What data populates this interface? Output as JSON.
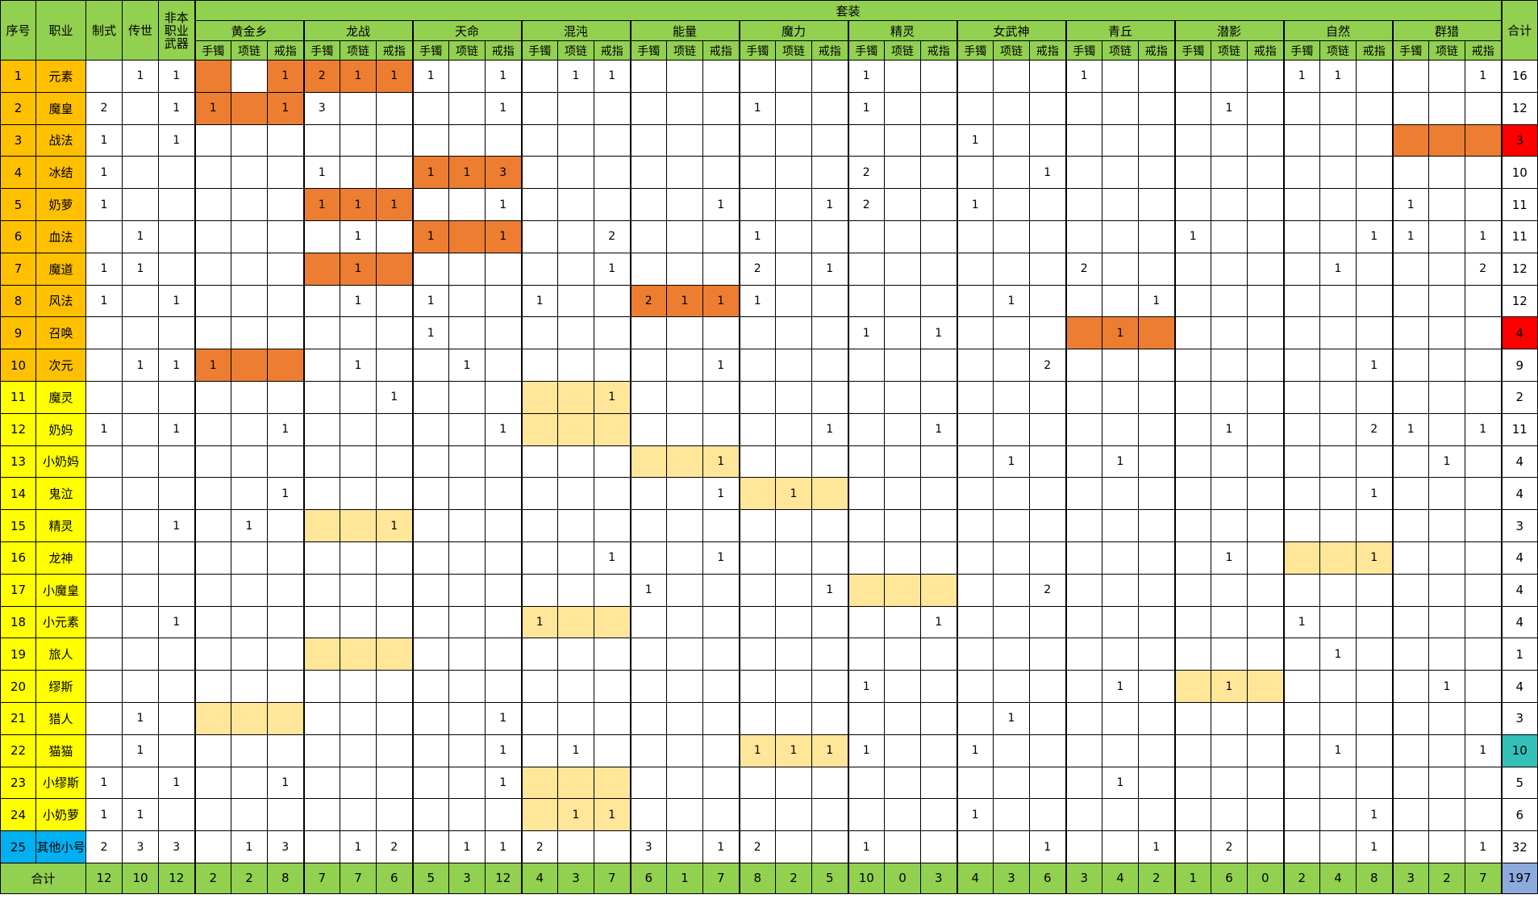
{
  "headers": {
    "idx": "序号",
    "cls": "职业",
    "zhishi": "制式",
    "chuanshi": "传世",
    "nonweapon": "非本职业武器",
    "set_group": "套装",
    "total": "合计",
    "sets": [
      "黄金乡",
      "龙战",
      "天命",
      "混沌",
      "能量",
      "魔力",
      "精灵",
      "女武神",
      "青丘",
      "潜影",
      "自然",
      "群猎"
    ],
    "slots": [
      "手镯",
      "项链",
      "戒指"
    ]
  },
  "rows": [
    {
      "idx": "1",
      "cls": "元素",
      "color": "orange",
      "zhishi": "",
      "chuanshi": "1",
      "nonweapon": "1",
      "cells": [
        "",
        "",
        "1",
        "2",
        "1",
        "1",
        "1",
        "",
        "1",
        "",
        "1",
        "1",
        "",
        "",
        "",
        "",
        "",
        "",
        "1",
        "",
        "",
        "",
        "",
        "",
        "1",
        "",
        "",
        "",
        "",
        "",
        "1",
        "1",
        "",
        "",
        "",
        "1"
      ],
      "total": "16"
    },
    {
      "idx": "2",
      "cls": "魔皇",
      "color": "orange",
      "zhishi": "2",
      "chuanshi": "",
      "nonweapon": "1",
      "cells": [
        "1",
        "",
        "1",
        "3",
        "",
        "",
        "",
        "",
        "1",
        "",
        "",
        "",
        "",
        "",
        "",
        "1",
        "",
        "",
        "1",
        "",
        "",
        "",
        "",
        "",
        "",
        "",
        "",
        "",
        "1",
        "",
        "",
        "",
        "",
        "",
        "",
        ""
      ],
      "total": "12"
    },
    {
      "idx": "3",
      "cls": "战法",
      "color": "orange",
      "zhishi": "1",
      "chuanshi": "",
      "nonweapon": "1",
      "cells": [
        "",
        "",
        "",
        "",
        "",
        "",
        "",
        "",
        "",
        "",
        "",
        "",
        "",
        "",
        "",
        "",
        "",
        "",
        "",
        "",
        "",
        "1",
        "",
        "",
        "",
        "",
        "",
        "",
        "",
        "",
        "",
        "",
        "",
        "",
        "",
        ""
      ],
      "total": "3",
      "total_color": "red"
    },
    {
      "idx": "4",
      "cls": "冰结",
      "color": "orange",
      "zhishi": "1",
      "chuanshi": "",
      "nonweapon": "",
      "cells": [
        "",
        "",
        "",
        "1",
        "",
        "",
        "1",
        "1",
        "3",
        "",
        "",
        "",
        "",
        "",
        "",
        "",
        "",
        "",
        "2",
        "",
        "",
        "",
        "",
        "1",
        "",
        "",
        "",
        "",
        "",
        "",
        "",
        "",
        "",
        "",
        "",
        ""
      ],
      "total": "10"
    },
    {
      "idx": "5",
      "cls": "奶萝",
      "color": "orange",
      "zhishi": "1",
      "chuanshi": "",
      "nonweapon": "",
      "cells": [
        "",
        "",
        "",
        "1",
        "1",
        "1",
        "",
        "",
        "1",
        "",
        "",
        "",
        "",
        "",
        "1",
        "",
        "",
        "1",
        "2",
        "",
        "",
        "1",
        "",
        "",
        "",
        "",
        "",
        "",
        "",
        "",
        "",
        "",
        "",
        "1",
        "",
        ""
      ],
      "total": "11"
    },
    {
      "idx": "6",
      "cls": "血法",
      "color": "orange",
      "zhishi": "",
      "chuanshi": "1",
      "nonweapon": "",
      "cells": [
        "",
        "",
        "",
        "",
        "1",
        "",
        "1",
        "",
        "1",
        "",
        "",
        "2",
        "",
        "",
        "",
        "1",
        "",
        "",
        "",
        "",
        "",
        "",
        "",
        "",
        "",
        "",
        "",
        "1",
        "",
        "",
        "",
        "",
        "1",
        "1",
        "",
        "1"
      ],
      "total": "11"
    },
    {
      "idx": "7",
      "cls": "魔道",
      "color": "orange",
      "zhishi": "1",
      "chuanshi": "1",
      "nonweapon": "",
      "cells": [
        "",
        "",
        "",
        "",
        "1",
        "",
        "",
        "",
        "",
        "",
        "",
        "1",
        "",
        "",
        "",
        "2",
        "",
        "1",
        "",
        "",
        "",
        "",
        "",
        "",
        "2",
        "",
        "",
        "",
        "",
        "",
        "",
        "1",
        "",
        "",
        "",
        "2"
      ],
      "total": "12"
    },
    {
      "idx": "8",
      "cls": "风法",
      "color": "orange",
      "zhishi": "1",
      "chuanshi": "",
      "nonweapon": "1",
      "cells": [
        "",
        "",
        "",
        "",
        "1",
        "",
        "1",
        "",
        "",
        "1",
        "",
        "",
        "2",
        "1",
        "1",
        "1",
        "",
        "",
        "",
        "",
        "",
        "",
        "1",
        "",
        "",
        "",
        "1",
        "",
        "",
        "",
        "",
        "",
        "",
        "",
        "",
        ""
      ],
      "total": "12"
    },
    {
      "idx": "9",
      "cls": "召唤",
      "color": "orange",
      "zhishi": "",
      "chuanshi": "",
      "nonweapon": "",
      "cells": [
        "",
        "",
        "",
        "",
        "",
        "",
        "1",
        "",
        "",
        "",
        "",
        "",
        "",
        "",
        "",
        "",
        "",
        "",
        "1",
        "",
        "1",
        "",
        "",
        "",
        "",
        "1",
        "",
        "",
        "",
        "",
        "",
        "",
        "",
        "",
        "",
        ""
      ],
      "total": "4",
      "total_color": "red"
    },
    {
      "idx": "10",
      "cls": "次元",
      "color": "orange",
      "zhishi": "",
      "chuanshi": "1",
      "nonweapon": "1",
      "cells": [
        "1",
        "",
        "",
        "",
        "1",
        "",
        "",
        "1",
        "",
        "",
        "",
        "",
        "",
        "",
        "1",
        "",
        "",
        "",
        "",
        "",
        "",
        "",
        "",
        "2",
        "",
        "",
        "",
        "",
        "",
        "",
        "",
        "",
        "1",
        "",
        "",
        ""
      ],
      "total": "9"
    },
    {
      "idx": "11",
      "cls": "魔灵",
      "color": "yellow",
      "zhishi": "",
      "chuanshi": "",
      "nonweapon": "",
      "cells": [
        "",
        "",
        "",
        "",
        "",
        "1",
        "",
        "",
        "",
        "",
        "",
        "1",
        "",
        "",
        "",
        "",
        "",
        "",
        "",
        "",
        "",
        "",
        "",
        "",
        "",
        "",
        "",
        "",
        "",
        "",
        "",
        "",
        "",
        "",
        "",
        ""
      ],
      "total": "2"
    },
    {
      "idx": "12",
      "cls": "奶妈",
      "color": "yellow",
      "zhishi": "1",
      "chuanshi": "",
      "nonweapon": "1",
      "cells": [
        "",
        "",
        "1",
        "",
        "",
        "",
        "",
        "",
        "1",
        "",
        "",
        "",
        "",
        "",
        "",
        "",
        "",
        "1",
        "",
        "",
        "1",
        "",
        "",
        "",
        "",
        "",
        "",
        "",
        "1",
        "",
        "",
        "",
        "2",
        "1",
        "",
        "1"
      ],
      "total": "11"
    },
    {
      "idx": "13",
      "cls": "小奶妈",
      "color": "yellow",
      "zhishi": "",
      "chuanshi": "",
      "nonweapon": "",
      "cells": [
        "",
        "",
        "",
        "",
        "",
        "",
        "",
        "",
        "",
        "",
        "",
        "",
        "",
        "",
        "1",
        "",
        "",
        "",
        "",
        "",
        "",
        "",
        "1",
        "",
        "",
        "1",
        "",
        "",
        "",
        "",
        "",
        "",
        "",
        "",
        "1",
        ""
      ],
      "total": "4"
    },
    {
      "idx": "14",
      "cls": "鬼泣",
      "color": "yellow",
      "zhishi": "",
      "chuanshi": "",
      "nonweapon": "",
      "cells": [
        "",
        "",
        "1",
        "",
        "",
        "",
        "",
        "",
        "",
        "",
        "",
        "",
        "",
        "",
        "1",
        "",
        "1",
        "",
        "",
        "",
        "",
        "",
        "",
        "",
        "",
        "",
        "",
        "",
        "",
        "",
        "",
        "",
        "1",
        "",
        "",
        ""
      ],
      "total": "4"
    },
    {
      "idx": "15",
      "cls": "精灵",
      "color": "yellow",
      "zhishi": "",
      "chuanshi": "",
      "nonweapon": "1",
      "cells": [
        "",
        "1",
        "",
        "",
        "",
        "1",
        "",
        "",
        "",
        "",
        "",
        "",
        "",
        "",
        "",
        "",
        "",
        "",
        "",
        "",
        "",
        "",
        "",
        "",
        "",
        "",
        "",
        "",
        "",
        "",
        "",
        "",
        "",
        "",
        "",
        ""
      ],
      "total": "3"
    },
    {
      "idx": "16",
      "cls": "龙神",
      "color": "yellow",
      "zhishi": "",
      "chuanshi": "",
      "nonweapon": "",
      "cells": [
        "",
        "",
        "",
        "",
        "",
        "",
        "",
        "",
        "",
        "",
        "",
        "1",
        "",
        "",
        "1",
        "",
        "",
        "",
        "",
        "",
        "",
        "",
        "",
        "",
        "",
        "",
        "",
        "",
        "1",
        "",
        "",
        "",
        "1",
        "",
        "",
        ""
      ],
      "total": "4"
    },
    {
      "idx": "17",
      "cls": "小魔皇",
      "color": "yellow",
      "zhishi": "",
      "chuanshi": "",
      "nonweapon": "",
      "cells": [
        "",
        "",
        "",
        "",
        "",
        "",
        "",
        "",
        "",
        "",
        "",
        "",
        "1",
        "",
        "",
        "",
        "",
        "1",
        "",
        "",
        "",
        "",
        "",
        "2",
        "",
        "",
        "",
        "",
        "",
        "",
        "",
        "",
        "",
        "",
        "",
        ""
      ],
      "total": "4"
    },
    {
      "idx": "18",
      "cls": "小元素",
      "color": "yellow",
      "zhishi": "",
      "chuanshi": "",
      "nonweapon": "1",
      "cells": [
        "",
        "",
        "",
        "",
        "",
        "",
        "",
        "",
        "",
        "1",
        "",
        "",
        "",
        "",
        "",
        "",
        "",
        "",
        "",
        "",
        "1",
        "",
        "",
        "",
        "",
        "",
        "",
        "",
        "",
        "",
        "1",
        "",
        "",
        "",
        "",
        ""
      ],
      "total": "4"
    },
    {
      "idx": "19",
      "cls": "旅人",
      "color": "yellow",
      "zhishi": "",
      "chuanshi": "",
      "nonweapon": "",
      "cells": [
        "",
        "",
        "",
        "",
        "",
        "",
        "",
        "",
        "",
        "",
        "",
        "",
        "",
        "",
        "",
        "",
        "",
        "",
        "",
        "",
        "",
        "",
        "",
        "",
        "",
        "",
        "",
        "",
        "",
        "",
        "",
        "1",
        "",
        "",
        "",
        ""
      ],
      "total": "1"
    },
    {
      "idx": "20",
      "cls": "缪斯",
      "color": "yellow",
      "zhishi": "",
      "chuanshi": "",
      "nonweapon": "",
      "cells": [
        "",
        "",
        "",
        "",
        "",
        "",
        "",
        "",
        "",
        "",
        "",
        "",
        "",
        "",
        "",
        "",
        "",
        "",
        "1",
        "",
        "",
        "",
        "",
        "",
        "",
        "1",
        "",
        "",
        "1",
        "",
        "",
        "",
        "",
        "",
        "1",
        ""
      ],
      "total": "4"
    },
    {
      "idx": "21",
      "cls": "猎人",
      "color": "yellow",
      "zhishi": "",
      "chuanshi": "1",
      "nonweapon": "",
      "cells": [
        "",
        "",
        "",
        "",
        "",
        "",
        "",
        "",
        "1",
        "",
        "",
        "",
        "",
        "",
        "",
        "",
        "",
        "",
        "",
        "",
        "",
        "",
        "1",
        "",
        "",
        "",
        "",
        "",
        "",
        "",
        "",
        "",
        "",
        "",
        "",
        ""
      ],
      "total": "3"
    },
    {
      "idx": "22",
      "cls": "猫猫",
      "color": "yellow",
      "zhishi": "",
      "chuanshi": "1",
      "nonweapon": "",
      "cells": [
        "",
        "",
        "",
        "",
        "",
        "",
        "",
        "",
        "1",
        "",
        "1",
        "",
        "",
        "",
        "",
        "1",
        "1",
        "1",
        "1",
        "",
        "",
        "1",
        "",
        "",
        "",
        "",
        "",
        "",
        "",
        "",
        "",
        "1",
        "",
        "",
        "",
        "1"
      ],
      "total": "10",
      "total_color": "teal"
    },
    {
      "idx": "23",
      "cls": "小缪斯",
      "color": "yellow",
      "zhishi": "1",
      "chuanshi": "",
      "nonweapon": "1",
      "cells": [
        "",
        "",
        "1",
        "",
        "",
        "",
        "",
        "",
        "1",
        "",
        "",
        "",
        "",
        "",
        "",
        "",
        "",
        "",
        "",
        "",
        "",
        "",
        "",
        "",
        "",
        "1",
        "",
        "",
        "",
        "",
        "",
        "",
        "",
        "",
        "",
        ""
      ],
      "total": "5"
    },
    {
      "idx": "24",
      "cls": "小奶萝",
      "color": "yellow",
      "zhishi": "1",
      "chuanshi": "1",
      "nonweapon": "",
      "cells": [
        "",
        "",
        "",
        "",
        "",
        "",
        "",
        "",
        "",
        "",
        "1",
        "1",
        "",
        "",
        "",
        "",
        "",
        "",
        "",
        "",
        "",
        "1",
        "",
        "",
        "",
        "",
        "",
        "",
        "",
        "",
        "",
        "",
        "1",
        "",
        "",
        ""
      ],
      "total": "6"
    },
    {
      "idx": "25",
      "cls": "其他小号",
      "color": "blue",
      "zhishi": "2",
      "chuanshi": "3",
      "nonweapon": "3",
      "cells": [
        "",
        "1",
        "3",
        "",
        "1",
        "2",
        "",
        "1",
        "1",
        "2",
        "",
        "",
        "3",
        "",
        "1",
        "2",
        "",
        "",
        "1",
        "",
        "",
        "",
        "",
        "1",
        "",
        "",
        "1",
        "",
        "2",
        "",
        "",
        "",
        "1",
        "",
        "",
        "1"
      ],
      "total": "32"
    }
  ],
  "footer": {
    "label": "合计",
    "zhishi": "12",
    "chuanshi": "10",
    "nonweapon": "12",
    "cells": [
      "2",
      "2",
      "8",
      "7",
      "7",
      "6",
      "5",
      "3",
      "12",
      "4",
      "3",
      "7",
      "6",
      "1",
      "7",
      "8",
      "2",
      "5",
      "10",
      "0",
      "3",
      "4",
      "3",
      "6",
      "3",
      "4",
      "2",
      "1",
      "6",
      "0",
      "2",
      "4",
      "8",
      "3",
      "2",
      "7"
    ],
    "total": "197"
  },
  "highlights": {
    "orange": [
      [
        0,
        0
      ],
      [
        0,
        2
      ],
      [
        2,
        33
      ],
      [
        2,
        34
      ],
      [
        2,
        35
      ],
      [
        3,
        6
      ],
      [
        3,
        7
      ],
      [
        3,
        8
      ],
      [
        4,
        3
      ],
      [
        4,
        4
      ],
      [
        4,
        5
      ],
      [
        5,
        6
      ],
      [
        5,
        7
      ],
      [
        5,
        8
      ],
      [
        6,
        3
      ],
      [
        6,
        4
      ],
      [
        6,
        5
      ],
      [
        7,
        12
      ],
      [
        7,
        13
      ],
      [
        7,
        14
      ],
      [
        8,
        24
      ],
      [
        8,
        25
      ],
      [
        8,
        26
      ],
      [
        9,
        0
      ],
      [
        9,
        1
      ],
      [
        9,
        2
      ],
      [
        0,
        3
      ],
      [
        0,
        4
      ],
      [
        0,
        5
      ],
      [
        1,
        0
      ],
      [
        1,
        1
      ],
      [
        1,
        2
      ]
    ],
    "light": [
      [
        10,
        9
      ],
      [
        10,
        10
      ],
      [
        10,
        11
      ],
      [
        11,
        9
      ],
      [
        11,
        10
      ],
      [
        11,
        11
      ],
      [
        12,
        12
      ],
      [
        12,
        13
      ],
      [
        12,
        14
      ],
      [
        13,
        15
      ],
      [
        13,
        16
      ],
      [
        13,
        17
      ],
      [
        14,
        3
      ],
      [
        14,
        4
      ],
      [
        14,
        5
      ],
      [
        15,
        30
      ],
      [
        15,
        31
      ],
      [
        15,
        32
      ],
      [
        16,
        18
      ],
      [
        16,
        19
      ],
      [
        16,
        20
      ],
      [
        17,
        9
      ],
      [
        17,
        10
      ],
      [
        17,
        11
      ],
      [
        18,
        3
      ],
      [
        18,
        4
      ],
      [
        18,
        5
      ],
      [
        19,
        27
      ],
      [
        19,
        28
      ],
      [
        19,
        29
      ],
      [
        20,
        0
      ],
      [
        20,
        1
      ],
      [
        20,
        2
      ],
      [
        21,
        15
      ],
      [
        21,
        16
      ],
      [
        21,
        17
      ],
      [
        22,
        9
      ],
      [
        22,
        10
      ],
      [
        22,
        11
      ],
      [
        23,
        9
      ],
      [
        23,
        10
      ],
      [
        23,
        11
      ]
    ]
  }
}
